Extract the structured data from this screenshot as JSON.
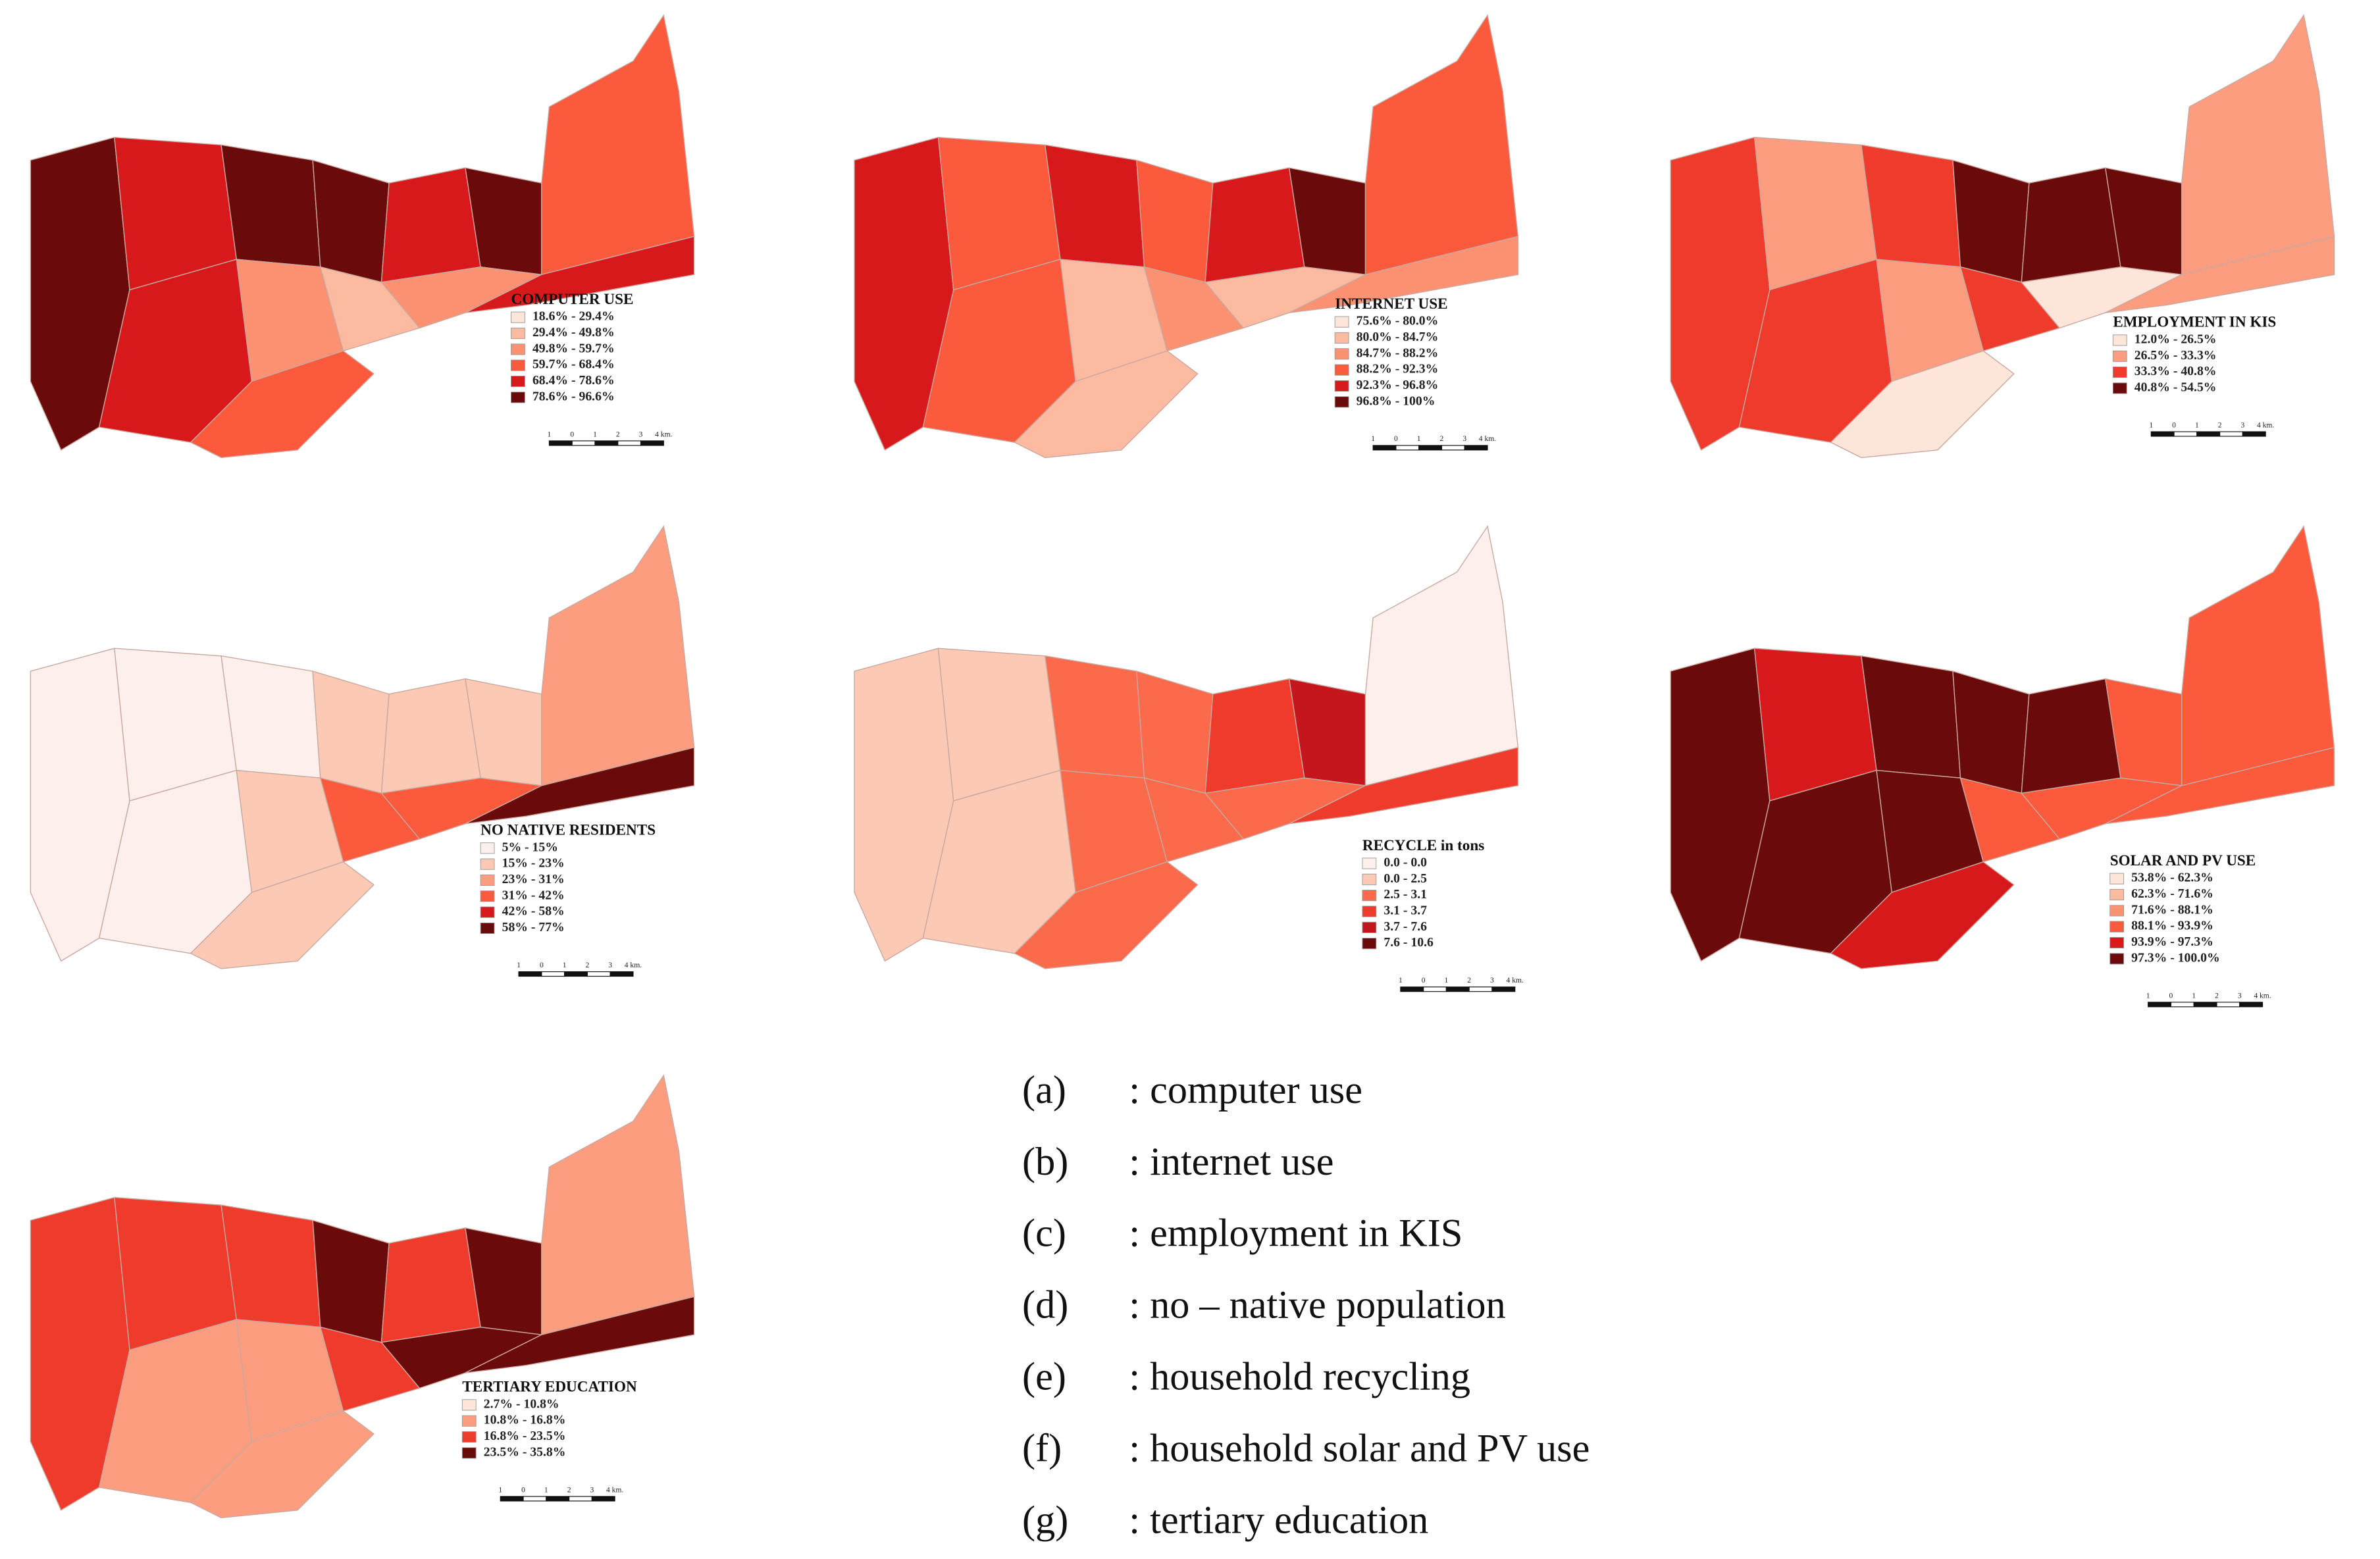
{
  "scale_bar": {
    "labels": [
      "1",
      "0",
      "1",
      "2",
      "3",
      "4 km."
    ]
  },
  "maps": [
    {
      "title": "COMPUTER USE",
      "legend": [
        {
          "label": "18.6% - 29.4%",
          "color": "#fee5d9"
        },
        {
          "label": "29.4% - 49.8%",
          "color": "#fcbba1"
        },
        {
          "label": "49.8% - 59.7%",
          "color": "#fc9272"
        },
        {
          "label": "59.7% - 68.4%",
          "color": "#fb5a3c"
        },
        {
          "label": "68.4% - 78.6%",
          "color": "#d7191c"
        },
        {
          "label": "78.6% - 96.6%",
          "color": "#6b0a0a"
        }
      ],
      "district_classes": [
        5,
        4,
        5,
        5,
        4,
        5,
        3,
        4,
        2,
        1,
        2,
        4,
        3
      ]
    },
    {
      "title": "INTERNET USE",
      "legend": [
        {
          "label": "75.6% - 80.0%",
          "color": "#fee5d9"
        },
        {
          "label": "80.0% - 84.7%",
          "color": "#fcbba1"
        },
        {
          "label": "84.7% - 88.2%",
          "color": "#fc9272"
        },
        {
          "label": "88.2% - 92.3%",
          "color": "#fb5a3c"
        },
        {
          "label": "92.3% - 96.8%",
          "color": "#d7191c"
        },
        {
          "label": "96.8% - 100%",
          "color": "#6b0a0a"
        }
      ],
      "district_classes": [
        4,
        3,
        4,
        3,
        4,
        5,
        3,
        3,
        1,
        2,
        1,
        2,
        1
      ]
    },
    {
      "title": "EMPLOYMENT IN KIS",
      "legend": [
        {
          "label": "12.0% - 26.5%",
          "color": "#fee5d9"
        },
        {
          "label": "26.5% - 33.3%",
          "color": "#fc9d80"
        },
        {
          "label": "33.3% - 40.8%",
          "color": "#ef3b2c"
        },
        {
          "label": "40.8% - 54.5%",
          "color": "#6b0a0a"
        }
      ],
      "district_classes": [
        2,
        1,
        2,
        3,
        3,
        3,
        1,
        2,
        1,
        2,
        0,
        1,
        0
      ]
    },
    {
      "title": "NO NATIVE RESIDENTS",
      "legend": [
        {
          "label": "5% - 15%",
          "color": "#fdf0ec"
        },
        {
          "label": "15% - 23%",
          "color": "#fcc9b4"
        },
        {
          "label": "23% - 31%",
          "color": "#fc9d80"
        },
        {
          "label": "31% - 42%",
          "color": "#fb5a3c"
        },
        {
          "label": "42% - 58%",
          "color": "#d7191c"
        },
        {
          "label": "58% - 77%",
          "color": "#6b0a0a"
        }
      ],
      "district_classes": [
        0,
        0,
        0,
        1,
        1,
        1,
        2,
        0,
        1,
        3,
        3,
        5,
        1
      ]
    },
    {
      "title": "RECYCLE in tons",
      "legend": [
        {
          "label": "0.0 - 0.0",
          "color": "#fdf0ec"
        },
        {
          "label": "0.0 - 2.5",
          "color": "#fcc9b4"
        },
        {
          "label": "2.5 - 3.1",
          "color": "#fb6a4a"
        },
        {
          "label": "3.1 - 3.7",
          "color": "#ef3b2c"
        },
        {
          "label": "3.7 - 7.6",
          "color": "#c4161c"
        },
        {
          "label": "7.6 - 10.6",
          "color": "#6b0a0a"
        }
      ],
      "district_classes": [
        1,
        1,
        2,
        2,
        3,
        4,
        0,
        1,
        2,
        2,
        2,
        3,
        2
      ]
    },
    {
      "title": "SOLAR AND PV USE",
      "legend": [
        {
          "label": "53.8% - 62.3%",
          "color": "#fee5d9"
        },
        {
          "label": "62.3% - 71.6%",
          "color": "#fcbba1"
        },
        {
          "label": "71.6% - 88.1%",
          "color": "#fc9272"
        },
        {
          "label": "88.1% - 93.9%",
          "color": "#fb5a3c"
        },
        {
          "label": "93.9% - 97.3%",
          "color": "#d7191c"
        },
        {
          "label": "97.3% - 100.0%",
          "color": "#6b0a0a"
        }
      ],
      "district_classes": [
        5,
        4,
        5,
        5,
        5,
        3,
        3,
        5,
        5,
        3,
        3,
        3,
        4
      ]
    },
    {
      "title": "TERTIARY EDUCATION",
      "legend": [
        {
          "label": "2.7% - 10.8%",
          "color": "#fee5d9"
        },
        {
          "label": "10.8% - 16.8%",
          "color": "#fc9d80"
        },
        {
          "label": "16.8% - 23.5%",
          "color": "#ef3b2c"
        },
        {
          "label": "23.5% - 35.8%",
          "color": "#6b0a0a"
        }
      ],
      "district_classes": [
        2,
        2,
        2,
        3,
        2,
        3,
        1,
        1,
        1,
        2,
        3,
        3,
        1
      ]
    }
  ],
  "captions": [
    {
      "letter": "(a)",
      "text": ": computer use"
    },
    {
      "letter": "(b)",
      "text": ": internet use"
    },
    {
      "letter": "(c)",
      "text": ": employment in KIS"
    },
    {
      "letter": "(d)",
      "text": ": no – native population"
    },
    {
      "letter": "(e)",
      "text": ": household recycling"
    },
    {
      "letter": "(f)",
      "text": ": household solar and PV use"
    },
    {
      "letter": "(g)",
      "text": ": tertiary education"
    }
  ]
}
